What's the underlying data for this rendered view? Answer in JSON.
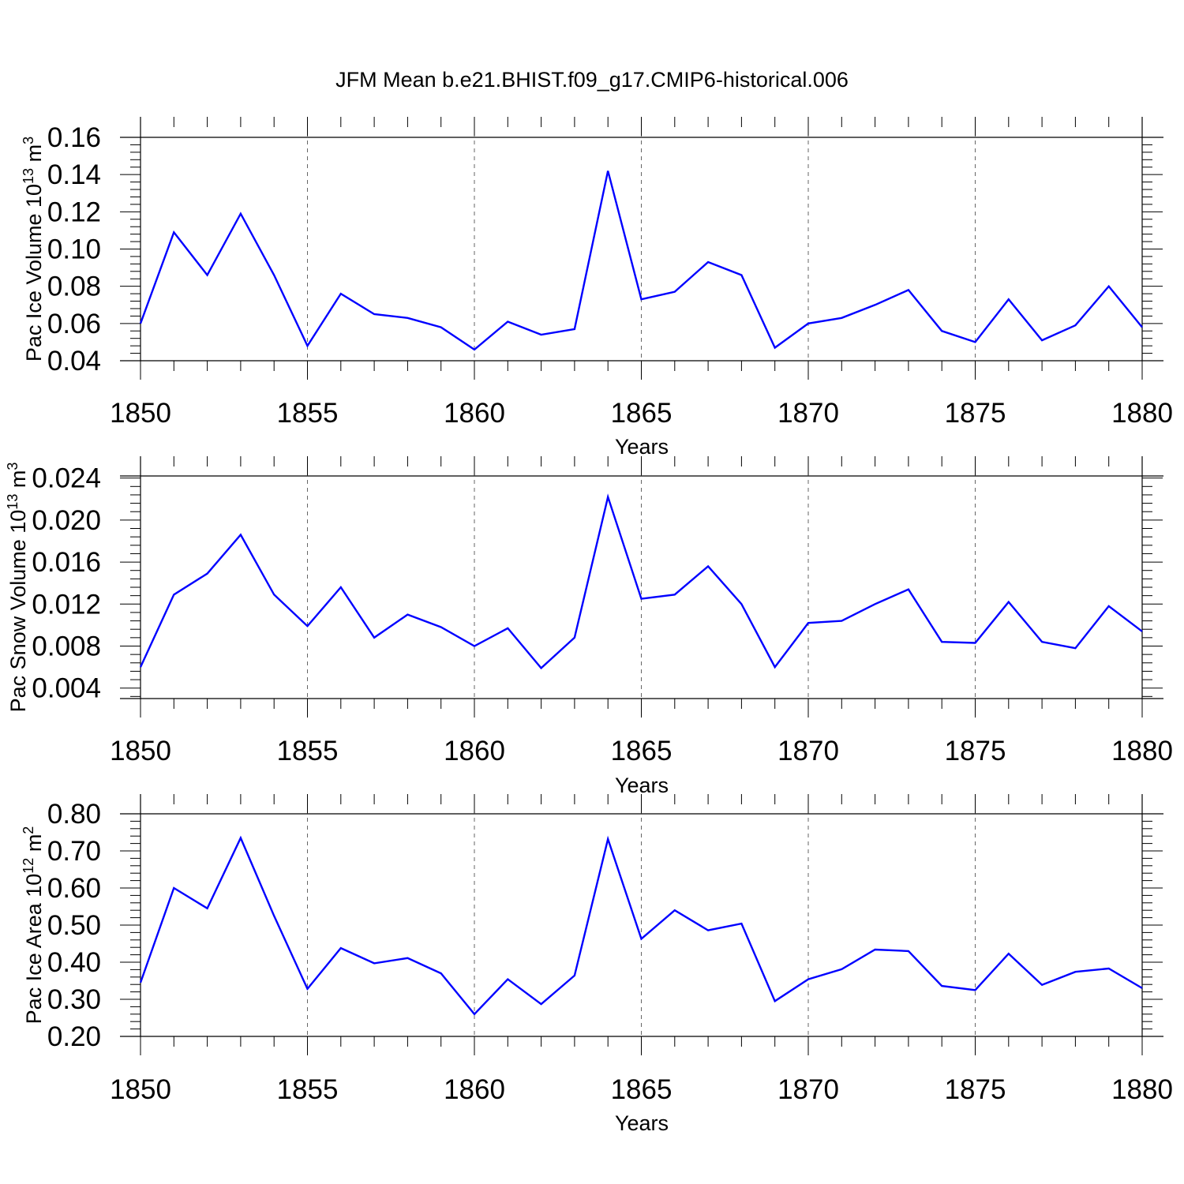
{
  "title": "JFM Mean b.e21.BHIST.f09_g17.CMIP6-historical.006",
  "colors": {
    "series": "#0000ff",
    "axis": "#000000",
    "grid": "#666666"
  },
  "chart_data": [
    {
      "type": "line",
      "ylabel": {
        "text": "Pac Ice Volume 10",
        "sup": "13",
        "unit": " m",
        "unit_sup": "3"
      },
      "xlabel": "Years",
      "xlim": [
        1850,
        1880
      ],
      "ylim": [
        0.04,
        0.16
      ],
      "x_ticks": [
        "1850",
        "1855",
        "1860",
        "1865",
        "1870",
        "1875",
        "1880"
      ],
      "y_ticks": [
        "0.04",
        "0.06",
        "0.08",
        "0.10",
        "0.12",
        "0.14",
        "0.16"
      ],
      "grid": "vertical dashed at major x ticks",
      "x": [
        1850,
        1851,
        1852,
        1853,
        1854,
        1855,
        1856,
        1857,
        1858,
        1859,
        1860,
        1861,
        1862,
        1863,
        1864,
        1865,
        1866,
        1867,
        1868,
        1869,
        1870,
        1871,
        1872,
        1873,
        1874,
        1875,
        1876,
        1877,
        1878,
        1879,
        1880
      ],
      "values": [
        0.06,
        0.109,
        0.086,
        0.119,
        0.086,
        0.048,
        0.076,
        0.065,
        0.063,
        0.058,
        0.046,
        0.061,
        0.054,
        0.057,
        0.142,
        0.073,
        0.077,
        0.093,
        0.086,
        0.047,
        0.06,
        0.063,
        0.07,
        0.078,
        0.056,
        0.05,
        0.073,
        0.051,
        0.059,
        0.08,
        0.058
      ]
    },
    {
      "type": "line",
      "ylabel": {
        "text": "Pac Snow Volume 10",
        "sup": "13",
        "unit": " m",
        "unit_sup": "3"
      },
      "xlabel": "Years",
      "xlim": [
        1850,
        1880
      ],
      "ylim": [
        0.003,
        0.0242
      ],
      "x_ticks": [
        "1850",
        "1855",
        "1860",
        "1865",
        "1870",
        "1875",
        "1880"
      ],
      "y_ticks": [
        "0.004",
        "0.008",
        "0.012",
        "0.016",
        "0.020",
        "0.024"
      ],
      "grid": "vertical dashed at major x ticks",
      "x": [
        1850,
        1851,
        1852,
        1853,
        1854,
        1855,
        1856,
        1857,
        1858,
        1859,
        1860,
        1861,
        1862,
        1863,
        1864,
        1865,
        1866,
        1867,
        1868,
        1869,
        1870,
        1871,
        1872,
        1873,
        1874,
        1875,
        1876,
        1877,
        1878,
        1879,
        1880
      ],
      "values": [
        0.006,
        0.0129,
        0.0149,
        0.0186,
        0.0129,
        0.0099,
        0.0136,
        0.0088,
        0.011,
        0.0098,
        0.008,
        0.0097,
        0.0059,
        0.0088,
        0.0222,
        0.0125,
        0.0129,
        0.0156,
        0.012,
        0.006,
        0.0102,
        0.0104,
        0.012,
        0.0134,
        0.0084,
        0.0083,
        0.0122,
        0.0084,
        0.0078,
        0.0118,
        0.0094
      ]
    },
    {
      "type": "line",
      "ylabel": {
        "text": "Pac Ice Area 10",
        "sup": "12",
        "unit": " m",
        "unit_sup": "2"
      },
      "xlabel": "Years",
      "xlim": [
        1850,
        1880
      ],
      "ylim": [
        0.2,
        0.8
      ],
      "x_ticks": [
        "1850",
        "1855",
        "1860",
        "1865",
        "1870",
        "1875",
        "1880"
      ],
      "y_ticks": [
        "0.20",
        "0.30",
        "0.40",
        "0.50",
        "0.60",
        "0.70",
        "0.80"
      ],
      "grid": "vertical dashed at major x ticks",
      "x": [
        1850,
        1851,
        1852,
        1853,
        1854,
        1855,
        1856,
        1857,
        1858,
        1859,
        1860,
        1861,
        1862,
        1863,
        1864,
        1865,
        1866,
        1867,
        1868,
        1869,
        1870,
        1871,
        1872,
        1873,
        1874,
        1875,
        1876,
        1877,
        1878,
        1879,
        1880
      ],
      "values": [
        0.345,
        0.6,
        0.545,
        0.735,
        0.525,
        0.328,
        0.438,
        0.397,
        0.411,
        0.37,
        0.26,
        0.354,
        0.287,
        0.364,
        0.732,
        0.463,
        0.54,
        0.486,
        0.504,
        0.295,
        0.354,
        0.381,
        0.434,
        0.43,
        0.336,
        0.325,
        0.423,
        0.339,
        0.374,
        0.383,
        0.33
      ]
    }
  ]
}
